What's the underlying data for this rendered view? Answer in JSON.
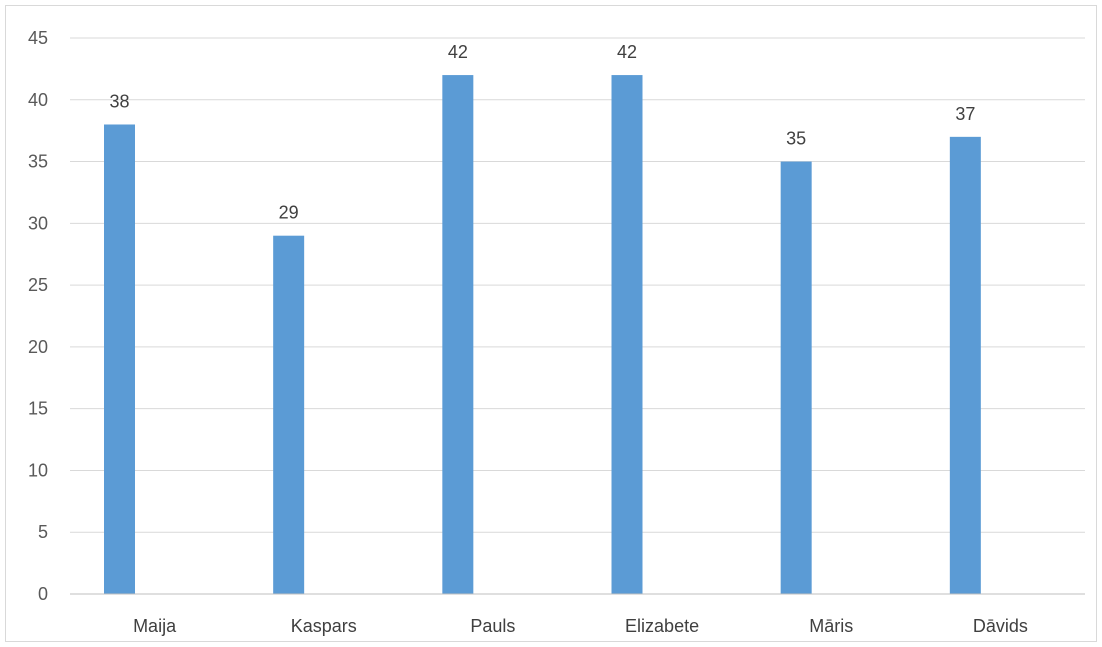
{
  "chart_data": {
    "type": "bar",
    "categories": [
      "Maija",
      "Kaspars",
      "Pauls",
      "Elizabete",
      "Māris",
      "Dāvids"
    ],
    "series": [
      {
        "values": [
          38,
          29,
          42,
          42,
          35,
          37
        ]
      }
    ],
    "ylim": [
      0,
      45
    ],
    "yticks": [
      0,
      5,
      10,
      15,
      20,
      25,
      30,
      35,
      40,
      45
    ],
    "grid": true,
    "legend": "none",
    "data_labels": true,
    "bar_color": "#5b9bd5"
  }
}
